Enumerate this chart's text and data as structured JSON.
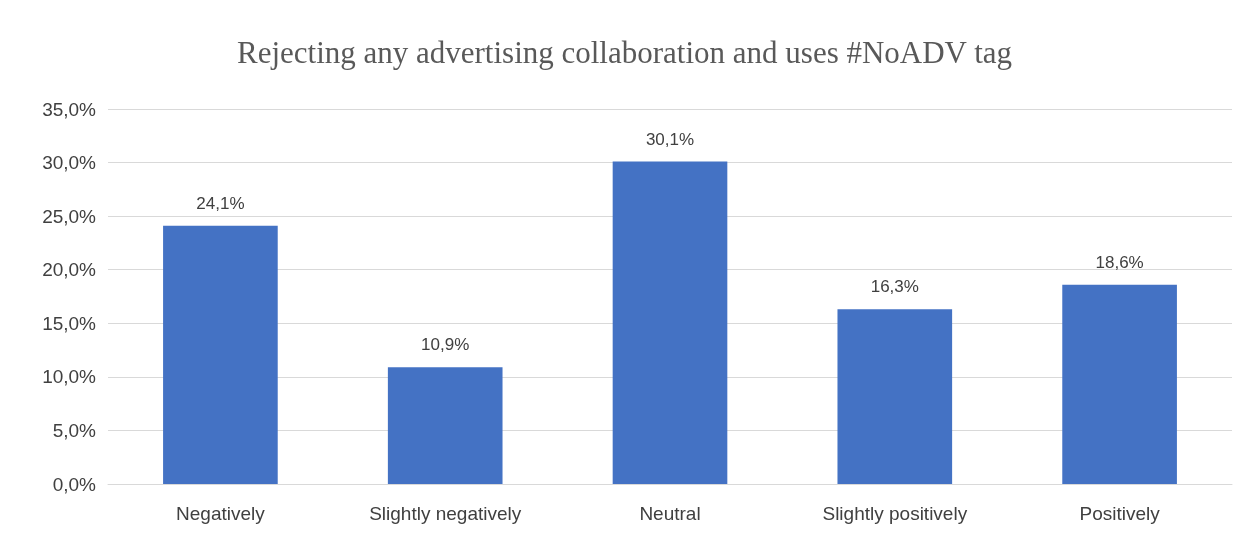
{
  "chart_data": {
    "type": "bar",
    "title": "Rejecting any advertising collaboration and uses #NoADV tag",
    "categories": [
      "Negatively",
      "Slightly negatively",
      "Neutral",
      "Slightly positively",
      "Positively"
    ],
    "values": [
      24.1,
      10.9,
      30.1,
      16.3,
      18.6
    ],
    "value_labels": [
      "24,1%",
      "10,9%",
      "30,1%",
      "16,3%",
      "18,6%"
    ],
    "color": "#4472c4",
    "ylim": [
      0,
      35
    ],
    "yticks": [
      {
        "value": 0,
        "label": "0,0%"
      },
      {
        "value": 5,
        "label": "5,0%"
      },
      {
        "value": 10,
        "label": "10,0%"
      },
      {
        "value": 15,
        "label": "15,0%"
      },
      {
        "value": 20,
        "label": "20,0%"
      },
      {
        "value": 25,
        "label": "25,0%"
      },
      {
        "value": 30,
        "label": "30,0%"
      },
      {
        "value": 35,
        "label": "35,0%"
      }
    ],
    "grid": "y"
  }
}
